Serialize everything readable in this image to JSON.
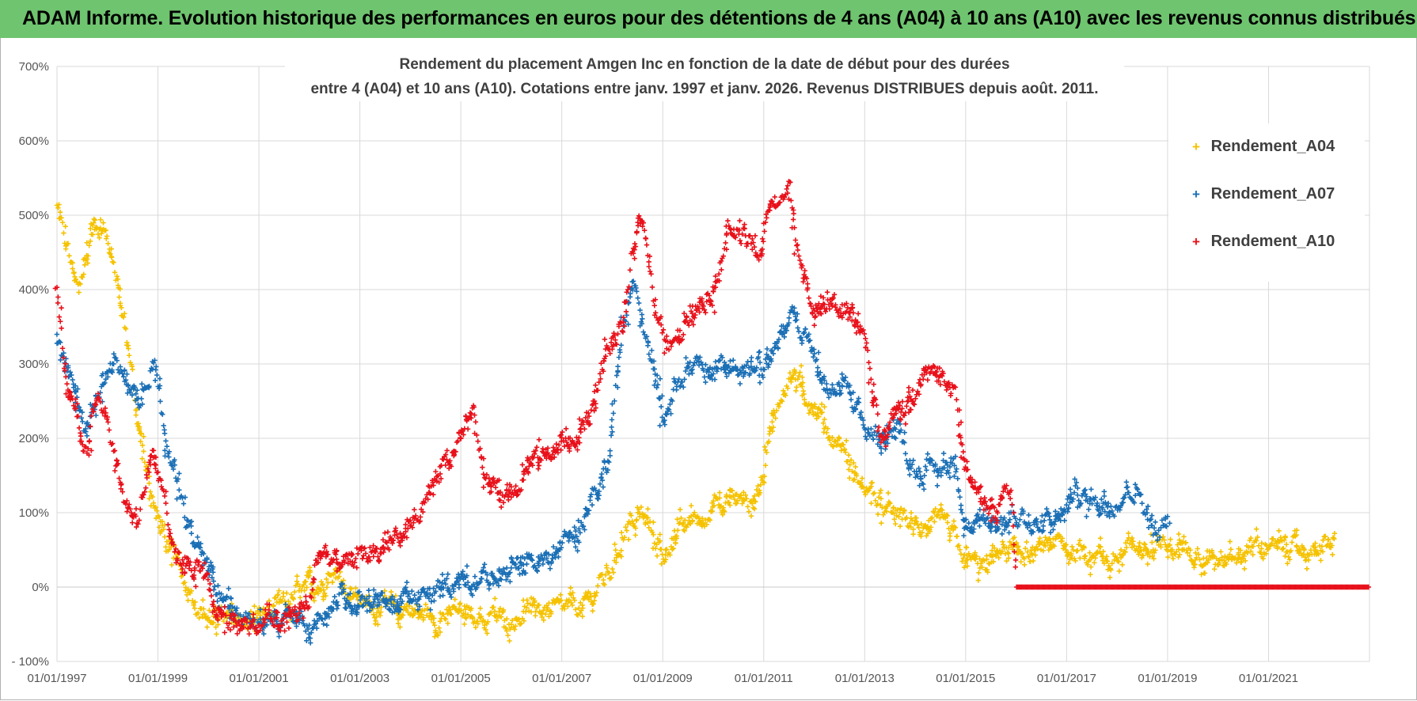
{
  "banner": {
    "title": "ADAM Informe. Evolution historique des performances en euros pour des détentions de 4 ans (A04) à 10 ans (A10) avec les revenus connus distribués"
  },
  "chart_data": {
    "type": "scatter",
    "title_line1": "Rendement du placement Amgen Inc en fonction de la date de début pour des durées",
    "title_line2": "entre 4 (A04) et 10 ans (A10).  Cotations entre janv. 1997 et janv. 2026. Revenus DISTRIBUES depuis août. 2011.",
    "x_start_year": 1997,
    "x_end_year": 2023,
    "xlim": [
      1997.0,
      2023.0
    ],
    "ylim": [
      -100,
      700
    ],
    "y_ticks": [
      -100,
      0,
      100,
      200,
      300,
      400,
      500,
      600,
      700
    ],
    "y_tick_labels": [
      "- 100%",
      "0%",
      "100%",
      "200%",
      "300%",
      "400%",
      "500%",
      "600%",
      "700%"
    ],
    "x_ticks": [
      1997,
      1999,
      2001,
      2003,
      2005,
      2007,
      2009,
      2011,
      2013,
      2015,
      2017,
      2019,
      2021
    ],
    "x_tick_labels": [
      "01/01/1997",
      "01/01/1999",
      "01/01/2001",
      "01/01/2003",
      "01/01/2005",
      "01/01/2007",
      "01/01/2009",
      "01/01/2011",
      "01/01/2013",
      "01/01/2015",
      "01/01/2017",
      "01/01/2019",
      "01/01/2021"
    ],
    "legend_position": "top-right",
    "grid": true,
    "series": [
      {
        "name": "Rendement_A04",
        "color": "#f5c200",
        "x": [
          1997.0,
          1997.2,
          1997.4,
          1997.6,
          1997.8,
          1998.0,
          1998.2,
          1998.4,
          1998.6,
          1998.8,
          1999.0,
          1999.3,
          1999.6,
          2000.0,
          2000.5,
          2001.0,
          2001.5,
          2002.0,
          2002.3,
          2002.6,
          2003.0,
          2003.5,
          2004.0,
          2004.5,
          2005.0,
          2005.5,
          2006.0,
          2006.5,
          2007.0,
          2007.5,
          2008.0,
          2008.3,
          2008.6,
          2009.0,
          2009.5,
          2010.0,
          2010.5,
          2010.8,
          2011.0,
          2011.2,
          2011.4,
          2011.6,
          2011.8,
          2012.0,
          2012.3,
          2012.6,
          2013.0,
          2013.3,
          2013.6,
          2014.0,
          2014.5,
          2015.0,
          2015.3,
          2015.6,
          2016.0,
          2016.5,
          2017.0,
          2017.5,
          2018.0,
          2018.5,
          2019.0,
          2019.5,
          2020.0,
          2020.5,
          2021.0,
          2021.5,
          2022.0,
          2022.3
        ],
        "y": [
          510,
          460,
          400,
          440,
          490,
          470,
          420,
          330,
          220,
          150,
          90,
          40,
          0,
          -40,
          -45,
          -40,
          -20,
          0,
          10,
          20,
          -20,
          -30,
          -30,
          -40,
          -30,
          -40,
          -45,
          -30,
          -30,
          -20,
          20,
          90,
          100,
          50,
          80,
          110,
          120,
          110,
          160,
          220,
          260,
          290,
          260,
          250,
          210,
          180,
          130,
          110,
          90,
          80,
          90,
          40,
          20,
          40,
          50,
          50,
          50,
          40,
          40,
          60,
          60,
          50,
          40,
          50,
          60,
          50,
          50,
          60
        ]
      },
      {
        "name": "Rendement_A07",
        "color": "#1a6fb5",
        "x": [
          1997.0,
          1997.2,
          1997.4,
          1997.6,
          1997.8,
          1998.0,
          1998.3,
          1998.6,
          1998.9,
          1999.2,
          1999.5,
          1999.8,
          2000.2,
          2000.6,
          2001.0,
          2001.5,
          2002.0,
          2002.3,
          2002.6,
          2003.0,
          2003.5,
          2004.0,
          2004.5,
          2005.0,
          2005.5,
          2006.0,
          2006.5,
          2007.0,
          2007.3,
          2007.6,
          2007.9,
          2008.2,
          2008.4,
          2008.7,
          2009.0,
          2009.5,
          2010.0,
          2010.5,
          2011.0,
          2011.3,
          2011.6,
          2011.9,
          2012.2,
          2012.6,
          2013.0,
          2013.3,
          2013.6,
          2014.0,
          2014.4,
          2014.8,
          2015.0,
          2015.3,
          2015.6,
          2016.0,
          2016.4,
          2016.8,
          2017.2,
          2017.6,
          2018.0,
          2018.4,
          2018.8,
          2019.0
        ],
        "y": [
          330,
          290,
          250,
          210,
          260,
          300,
          290,
          250,
          310,
          200,
          100,
          50,
          0,
          -40,
          -50,
          -55,
          -50,
          -30,
          -10,
          -20,
          -25,
          -20,
          -10,
          10,
          15,
          20,
          30,
          50,
          70,
          120,
          170,
          340,
          410,
          320,
          240,
          290,
          290,
          300,
          300,
          320,
          380,
          330,
          260,
          270,
          210,
          200,
          220,
          160,
          160,
          170,
          80,
          80,
          90,
          100,
          80,
          90,
          120,
          110,
          120,
          130,
          70,
          90
        ]
      },
      {
        "name": "Rendement_A10",
        "color": "#e8111a",
        "x": [
          1997.0,
          1997.2,
          1997.4,
          1997.6,
          1997.8,
          1998.0,
          1998.3,
          1998.6,
          1998.9,
          1999.2,
          1999.5,
          1999.8,
          2000.2,
          2000.6,
          2001.0,
          2001.5,
          2002.0,
          2002.2,
          2002.4,
          2002.7,
          2003.0,
          2003.3,
          2003.6,
          2004.0,
          2004.4,
          2004.8,
          2005.0,
          2005.2,
          2005.5,
          2005.8,
          2006.2,
          2006.6,
          2007.0,
          2007.3,
          2007.6,
          2007.9,
          2008.2,
          2008.4,
          2008.6,
          2008.9,
          2009.2,
          2009.6,
          2010.0,
          2010.3,
          2010.6,
          2010.9,
          2011.2,
          2011.5,
          2011.8,
          2012.1,
          2012.4,
          2012.7,
          2013.0,
          2013.3,
          2013.6,
          2013.9,
          2014.2,
          2014.5,
          2014.8,
          2015.0,
          2015.3,
          2015.6,
          2015.9,
          2016.0,
          2016.5,
          2017.0,
          2017.5,
          2018.0,
          2018.5,
          2019.0,
          2019.5,
          2020.0,
          2020.5,
          2021.0,
          2021.5,
          2022.0,
          2022.5,
          2023.0
        ],
        "y": [
          400,
          260,
          230,
          190,
          260,
          230,
          120,
          100,
          170,
          80,
          30,
          20,
          -30,
          -45,
          -50,
          -45,
          -30,
          60,
          40,
          40,
          50,
          40,
          60,
          80,
          120,
          180,
          200,
          250,
          150,
          120,
          150,
          170,
          200,
          190,
          240,
          320,
          340,
          460,
          510,
          350,
          320,
          380,
          400,
          490,
          470,
          450,
          510,
          540,
          400,
          380,
          380,
          370,
          330,
          200,
          230,
          250,
          300,
          290,
          270,
          140,
          120,
          100,
          130,
          0,
          0,
          0,
          0,
          0,
          0,
          0,
          0,
          0,
          0,
          0,
          0,
          0,
          0,
          0
        ]
      }
    ]
  }
}
